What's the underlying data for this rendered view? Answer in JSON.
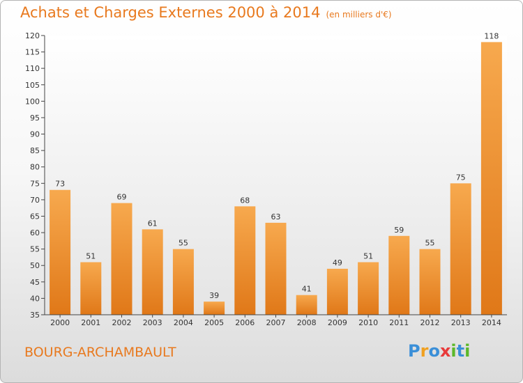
{
  "title": "Achats et Charges Externes 2000 à 2014",
  "subtitle": "(en milliers d'€)",
  "commune": "BOURG-ARCHAMBAULT",
  "logo": {
    "letters": [
      "P",
      "r",
      "o",
      "x",
      "i",
      "t",
      "i"
    ],
    "colors": [
      "#3a8fd8",
      "#f0a020",
      "#3a8fd8",
      "#e83a3a",
      "#5cb82a",
      "#3a8fd8",
      "#5cb82a"
    ]
  },
  "colors": {
    "bar_light": "#f7a94e",
    "bar_dark": "#e07818",
    "accent": "#e8791e"
  },
  "chart_data": {
    "type": "bar",
    "title": "Achats et Charges Externes 2000 à 2014",
    "xlabel": "",
    "ylabel": "",
    "categories": [
      "2000",
      "2001",
      "2002",
      "2003",
      "2004",
      "2005",
      "2006",
      "2007",
      "2008",
      "2009",
      "2010",
      "2011",
      "2012",
      "2013",
      "2014"
    ],
    "values": [
      73,
      51,
      69,
      61,
      55,
      39,
      68,
      63,
      41,
      49,
      51,
      59,
      55,
      75,
      118
    ],
    "ylim": [
      35,
      120
    ],
    "yticks": [
      35,
      40,
      45,
      50,
      55,
      60,
      65,
      70,
      75,
      80,
      85,
      90,
      95,
      100,
      105,
      110,
      115,
      120
    ],
    "grid": false,
    "data_labels": true
  }
}
